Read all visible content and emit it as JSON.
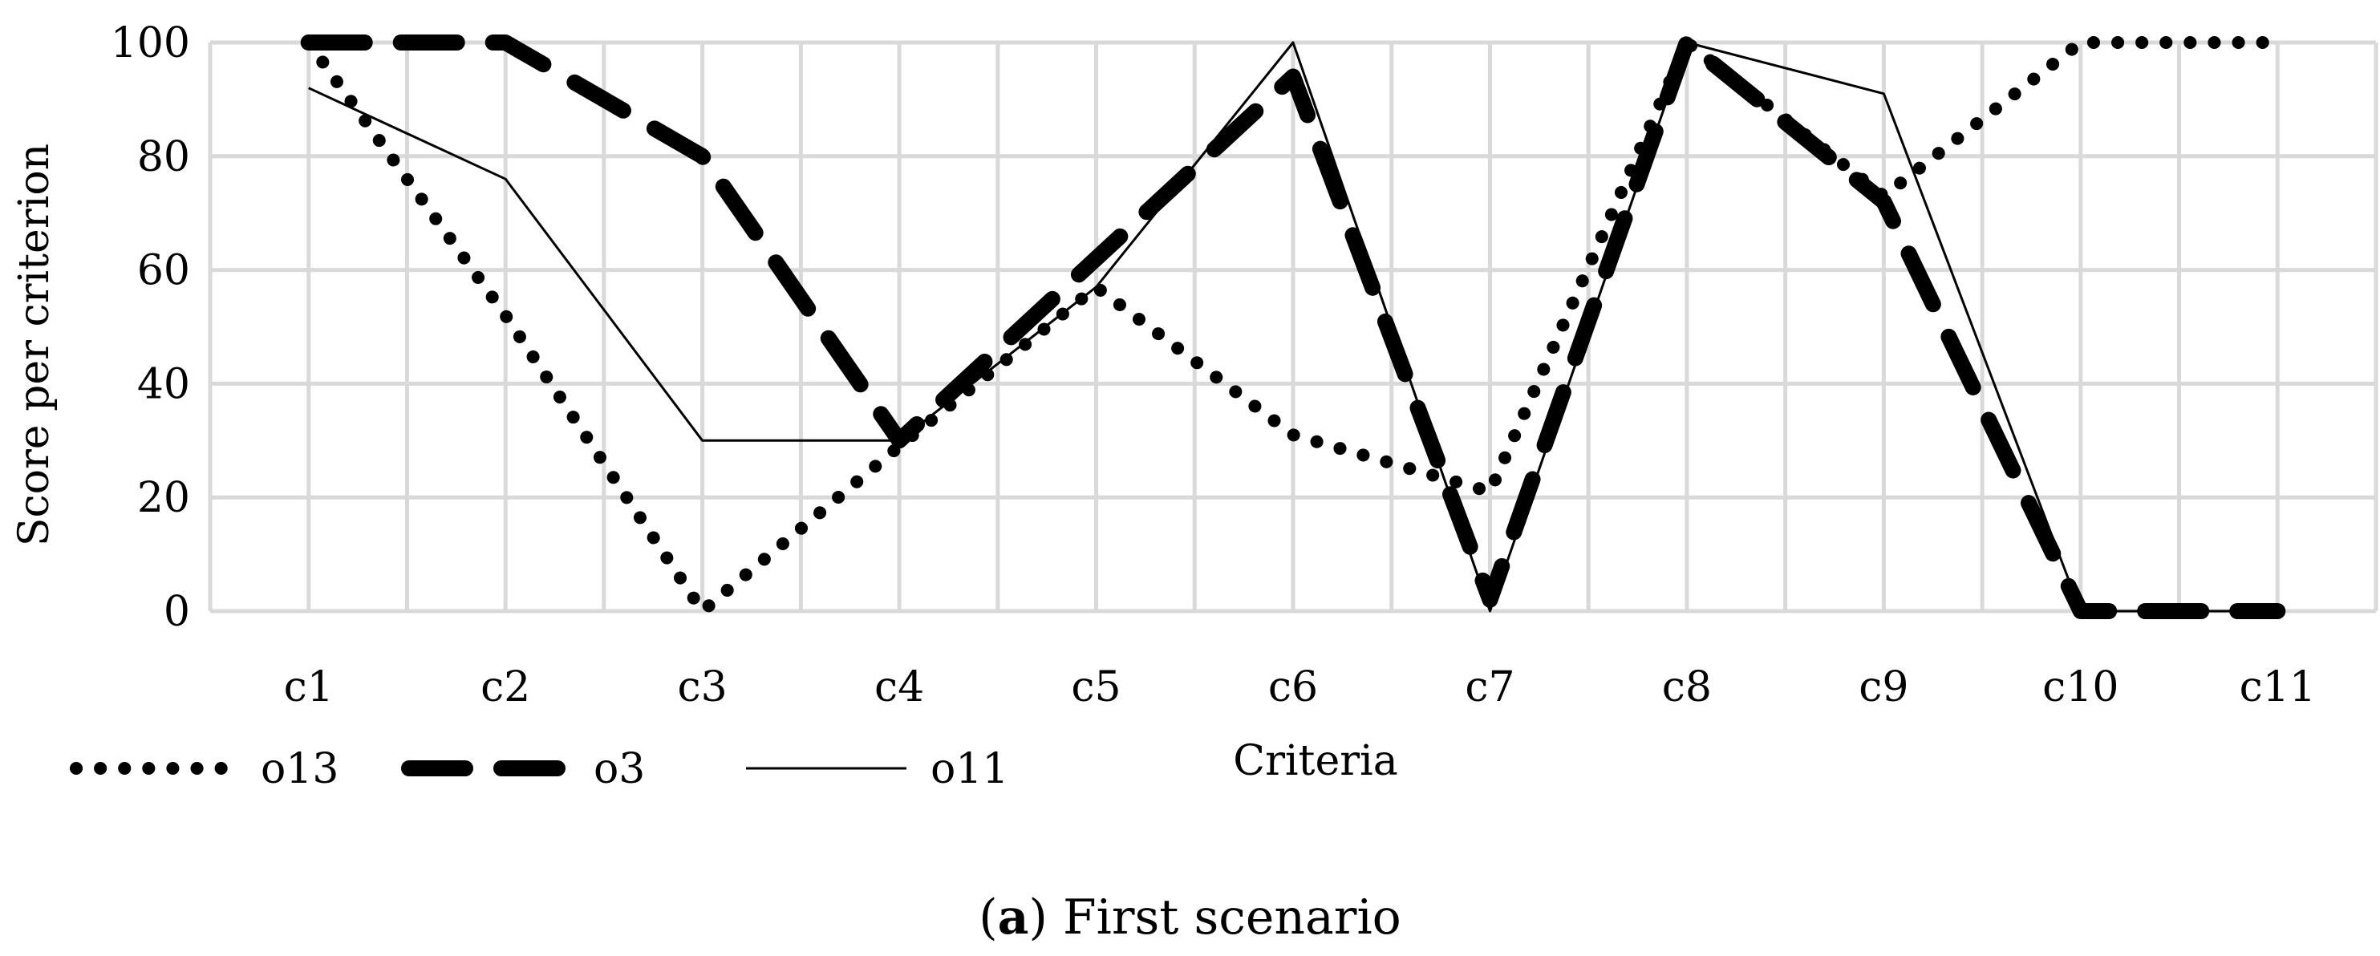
{
  "chart_data": {
    "type": "line",
    "categories": [
      "c1",
      "c2",
      "c3",
      "c4",
      "c5",
      "c6",
      "c7",
      "c8",
      "c9",
      "c10",
      "c11"
    ],
    "series": [
      {
        "name": "o13",
        "style": "dotted",
        "values": [
          100,
          52,
          0,
          29,
          57,
          31,
          21,
          100,
          73,
          100,
          100
        ]
      },
      {
        "name": "o3",
        "style": "dashed",
        "values": [
          100,
          100,
          80,
          30,
          62,
          94,
          2,
          100,
          72,
          0,
          0
        ]
      },
      {
        "name": "o11",
        "style": "solid",
        "values": [
          92,
          76,
          30,
          30,
          57,
          100,
          0,
          100,
          91,
          0,
          0
        ]
      }
    ],
    "xlabel": "Criteria",
    "ylabel": "Score per criterion",
    "yticks": [
      0,
      20,
      40,
      60,
      80,
      100
    ],
    "ylim": [
      0,
      100
    ],
    "grid": true,
    "legend_position": "bottom-left",
    "line_color": "#000000",
    "grid_color": "#d9d9d9"
  },
  "caption": {
    "label": "a",
    "text": "First scenario"
  }
}
